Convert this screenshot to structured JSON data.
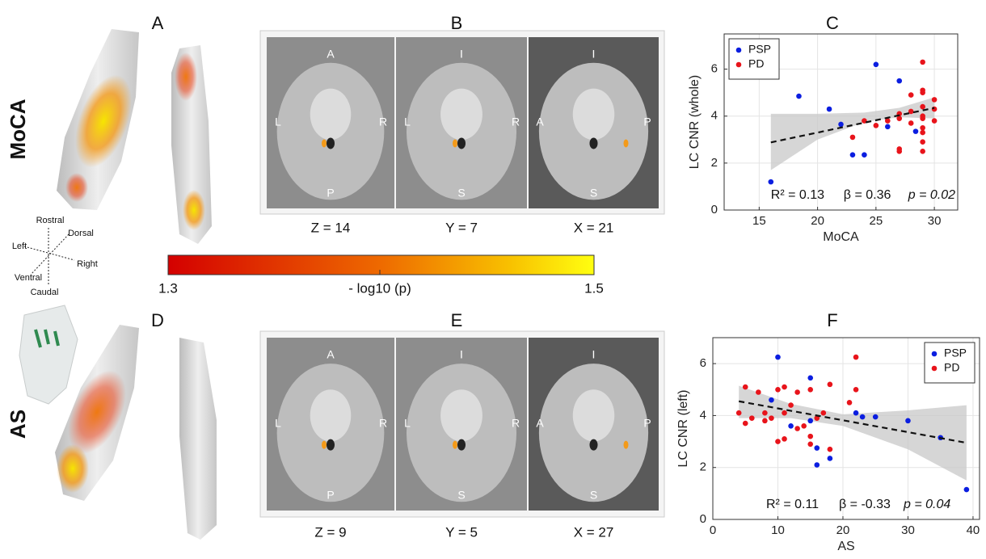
{
  "figure": {
    "panel_letters": [
      "A",
      "B",
      "C",
      "D",
      "E",
      "F"
    ],
    "row_labels": [
      "MoCA",
      "AS"
    ],
    "orientation": {
      "rostral": "Rostral",
      "dorsal": "Dorsal",
      "left": "Left",
      "right": "Right",
      "ventral": "Ventral",
      "caudal": "Caudal"
    },
    "colorbar": {
      "ticks": [
        1.3,
        1.5
      ],
      "label": "- log10 (p)"
    },
    "slice_rows": [
      [
        {
          "caption": "Z = 14",
          "labels": [
            "A",
            "L",
            "R",
            "P"
          ]
        },
        {
          "caption": "Y = 7",
          "labels": [
            "I",
            "L",
            "R",
            "S"
          ]
        },
        {
          "caption": "X = 21",
          "labels": [
            "I",
            "A",
            "P",
            "S"
          ]
        }
      ],
      [
        {
          "caption": "Z = 9",
          "labels": [
            "A",
            "L",
            "R",
            "P"
          ]
        },
        {
          "caption": "Y = 5",
          "labels": [
            "I",
            "L",
            "R",
            "S"
          ]
        },
        {
          "caption": "X = 27",
          "labels": [
            "I",
            "A",
            "P",
            "S"
          ]
        }
      ]
    ]
  },
  "chart_data": [
    {
      "type": "scatter",
      "x_label": "MoCA",
      "y_label": "LC CNR (whole)",
      "xlim": [
        12,
        32
      ],
      "ylim": [
        0,
        7.5
      ],
      "xticks": [
        15,
        20,
        25,
        30
      ],
      "yticks": [
        0,
        2,
        4,
        6
      ],
      "grid": true,
      "legend": "upper-left",
      "annotation": [
        "R² = 0.13",
        "β = 0.36",
        "p = 0.02"
      ],
      "series": [
        {
          "name": "PSP",
          "color": "#0b1ee0",
          "x": [
            16,
            18.4,
            21,
            22,
            23,
            24,
            25,
            26,
            27,
            28.4
          ],
          "y": [
            1.2,
            4.85,
            4.3,
            3.65,
            2.35,
            2.35,
            6.2,
            3.55,
            5.5,
            3.35
          ]
        },
        {
          "name": "PD",
          "color": "#e8141b",
          "x": [
            23,
            24,
            25,
            26,
            27,
            27,
            27,
            27,
            28,
            28,
            28,
            29,
            29,
            29,
            29,
            29,
            29,
            29,
            29,
            29,
            30,
            30,
            30,
            29
          ],
          "y": [
            3.1,
            3.8,
            3.6,
            3.8,
            4.1,
            2.6,
            2.5,
            3.9,
            3.7,
            4.2,
            4.9,
            6.3,
            5.1,
            5.0,
            4.4,
            4.0,
            3.5,
            3.3,
            2.9,
            2.5,
            4.7,
            3.8,
            4.3,
            3.9
          ]
        }
      ],
      "fit": {
        "x": [
          16,
          30
        ],
        "y": [
          2.88,
          4.35
        ]
      },
      "band": {
        "x": [
          16,
          20,
          24,
          27,
          30
        ],
        "lower": [
          1.7,
          3.0,
          3.75,
          3.95,
          3.9
        ],
        "upper": [
          4.1,
          4.1,
          4.15,
          4.35,
          4.8
        ]
      }
    },
    {
      "type": "scatter",
      "x_label": "AS",
      "y_label": "LC CNR (left)",
      "xlim": [
        0,
        41
      ],
      "ylim": [
        0,
        7
      ],
      "xticks": [
        0,
        10,
        20,
        30,
        40
      ],
      "yticks": [
        0,
        2,
        4,
        6
      ],
      "grid": true,
      "legend": "upper-right",
      "annotation": [
        "R² = 0.11",
        "β = -0.33",
        "p = 0.04"
      ],
      "series": [
        {
          "name": "PSP",
          "color": "#0b1ee0",
          "x": [
            9,
            10,
            12,
            15,
            15,
            16,
            16,
            18,
            22,
            23,
            25,
            30,
            35,
            39
          ],
          "y": [
            4.6,
            6.25,
            3.6,
            5.45,
            3.8,
            2.1,
            2.75,
            2.35,
            4.1,
            3.95,
            3.95,
            3.8,
            3.15,
            1.15
          ]
        },
        {
          "name": "PD",
          "color": "#e8141b",
          "x": [
            4,
            5,
            5,
            6,
            7,
            8,
            8,
            9,
            10,
            10,
            11,
            11,
            11,
            12,
            13,
            13,
            14,
            15,
            15,
            15,
            16,
            17,
            18,
            18,
            21,
            22,
            22
          ],
          "y": [
            4.1,
            3.7,
            5.1,
            3.9,
            4.9,
            4.1,
            3.8,
            3.9,
            3.0,
            5.0,
            4.1,
            3.1,
            5.1,
            4.4,
            4.9,
            3.5,
            3.6,
            2.9,
            3.2,
            5.0,
            3.9,
            4.1,
            5.2,
            2.7,
            4.5,
            6.25,
            5.0
          ]
        }
      ],
      "fit": {
        "x": [
          4,
          39
        ],
        "y": [
          4.55,
          2.95
        ]
      },
      "band": {
        "x": [
          4,
          12,
          20,
          30,
          39
        ],
        "lower": [
          3.9,
          3.9,
          3.6,
          2.7,
          1.5
        ],
        "upper": [
          5.15,
          4.45,
          4.05,
          4.2,
          4.4
        ]
      }
    }
  ]
}
